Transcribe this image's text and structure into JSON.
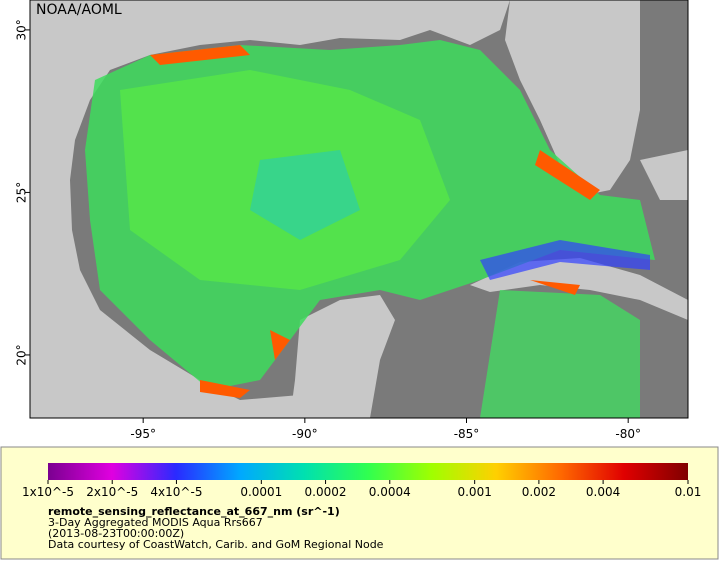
{
  "map": {
    "credit": "NOAA/AOML",
    "xlim": [
      -98.5,
      -78.15
    ],
    "ylim": [
      18.06,
      30.92
    ],
    "xticks": [
      {
        "value": -95,
        "label": "-95°"
      },
      {
        "value": -90,
        "label": "-90°"
      },
      {
        "value": -85,
        "label": "-85°"
      },
      {
        "value": -80,
        "label": "-80°"
      }
    ],
    "yticks": [
      {
        "value": 20,
        "label": "20°"
      },
      {
        "value": 25,
        "label": "25°"
      },
      {
        "value": 30,
        "label": "30°"
      }
    ]
  },
  "colorbar": {
    "scale": "log",
    "lim": [
      1e-05,
      0.01
    ],
    "colors": [
      "#7a0090",
      "#e000e0",
      "#2a2aff",
      "#00a8ff",
      "#00e0b0",
      "#30ff50",
      "#a0ff00",
      "#ffd000",
      "#ff6a00",
      "#e00000",
      "#800000"
    ],
    "ticks": [
      {
        "value": 1e-05,
        "label": "1x10^-5"
      },
      {
        "value": 2e-05,
        "label": "2x10^-5"
      },
      {
        "value": 4e-05,
        "label": "4x10^-5"
      },
      0.0001,
      0.0002,
      0.0004,
      0.001,
      0.002,
      0.004,
      0.01
    ]
  },
  "caption": {
    "variable": "remote_sensing_reflectance_at_667_nm (sr^-1)",
    "product": "3-Day Aggregated MODIS Aqua Rrs667",
    "time": "(2013-08-23T00:00:00Z)",
    "source": "Data courtesy of CoastWatch, Carib. and GoM Regional Node"
  }
}
